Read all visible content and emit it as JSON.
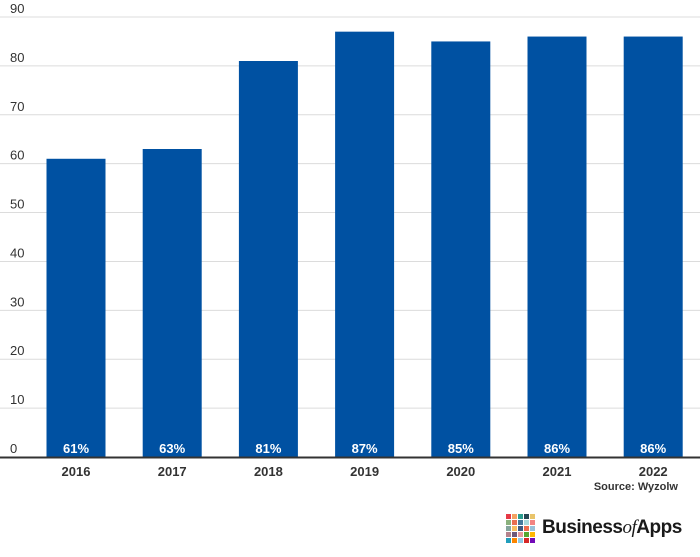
{
  "chart_data": {
    "type": "bar",
    "categories": [
      "2016",
      "2017",
      "2018",
      "2019",
      "2020",
      "2021",
      "2022"
    ],
    "values": [
      61,
      63,
      81,
      87,
      85,
      86,
      86
    ],
    "data_labels": [
      "61%",
      "63%",
      "81%",
      "87%",
      "85%",
      "86%",
      "86%"
    ],
    "y_ticks": [
      "0",
      "10",
      "20",
      "30",
      "40",
      "50",
      "60",
      "70",
      "80",
      "90"
    ],
    "ylim": [
      0,
      90
    ],
    "grid": true,
    "bar_color": "#0051a2",
    "label_color": "#ffffff"
  },
  "source": "Source: Wyzolw",
  "logo": {
    "brand_before": "Business",
    "brand_of": "of",
    "brand_after": "Apps",
    "tile_colors": [
      "#e63946",
      "#f4a261",
      "#2a9d8f",
      "#264653",
      "#e9c46a",
      "#8ab17d",
      "#e76f51",
      "#457b9d",
      "#a8dadc",
      "#f28482",
      "#84a59d",
      "#f6bd60",
      "#3d5a80",
      "#ee6c4d",
      "#98c1d9",
      "#b5838d",
      "#6d597a",
      "#e5989b",
      "#55a630",
      "#ffb703",
      "#219ebc",
      "#fb8500",
      "#8ecae6",
      "#d62828",
      "#7209b7"
    ]
  }
}
